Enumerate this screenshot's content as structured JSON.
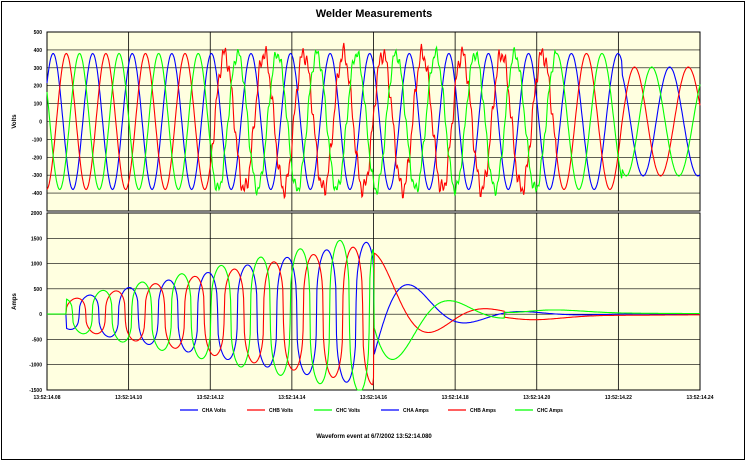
{
  "chart_data": [
    {
      "type": "line",
      "title": "Welder Measurements",
      "ylabel": "Volts",
      "ylim": [
        -500,
        500
      ],
      "yticks": [
        500,
        400,
        300,
        200,
        100,
        0,
        -100,
        -200,
        -300,
        -400
      ],
      "series": [
        {
          "name": "CHA Volts",
          "color": "#0000ff",
          "amplitude": 380,
          "phase_deg": 0
        },
        {
          "name": "CHB Volts",
          "color": "#ff0000",
          "amplitude": 380,
          "phase_deg": -120
        },
        {
          "name": "CHC Volts",
          "color": "#00ff00",
          "amplitude": 380,
          "phase_deg": 120
        }
      ]
    },
    {
      "type": "line",
      "ylabel": "Amps",
      "ylim": [
        -1500,
        2000
      ],
      "yticks": [
        2000,
        1500,
        1000,
        500,
        0,
        -500,
        -1000,
        -1500
      ],
      "series": [
        {
          "name": "CHA Amps",
          "color": "#0000ff",
          "peak": 1450
        },
        {
          "name": "CHB Amps",
          "color": "#ff0000",
          "peak": 1400
        },
        {
          "name": "CHC Amps",
          "color": "#00ff00",
          "peak": 1600
        }
      ]
    }
  ],
  "xaxis": {
    "ticks": [
      "13:52:14.08",
      "13:52:14.10",
      "13:52:14.12",
      "13:52:14.14",
      "13:52:14.16",
      "13:52:14.18",
      "13:52:14.20",
      "13:52:14.22",
      "13:52:14.24"
    ]
  },
  "legend": [
    "CHA Volts",
    "CHB Volts",
    "CHC Volts",
    "CHA Amps",
    "CHB Amps",
    "CHC Amps"
  ],
  "colors": {
    "cha": "#0000ff",
    "chb": "#ff0000",
    "chc": "#00ff00",
    "plot_bg": "#ffffe0"
  },
  "footer": "Waveform event at 6/7/2002 13:52:14.080"
}
